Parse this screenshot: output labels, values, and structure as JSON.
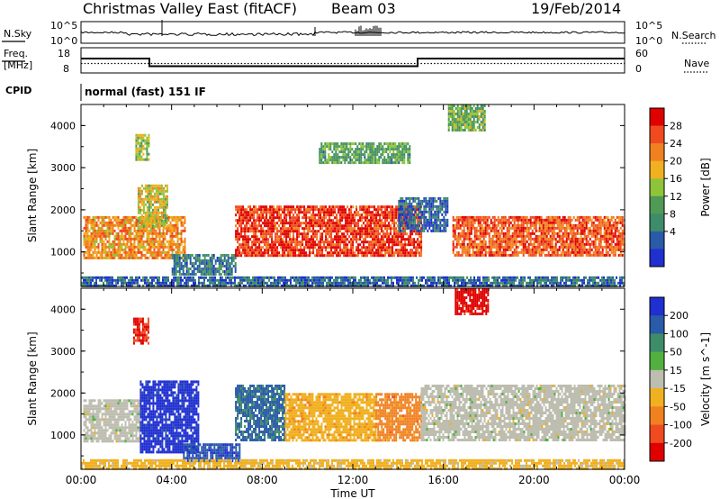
{
  "header": {
    "title": "Christmas Valley East (fitACF)",
    "beam": "Beam 03",
    "date": "19/Feb/2014"
  },
  "aux_panels": {
    "nsky_label": "N.Sky",
    "nsky_ticks": [
      "10^5",
      "10^0"
    ],
    "nsearch_label": "N.Search",
    "nsearch_ticks": [
      "10^5",
      "10^0"
    ],
    "freq_label": "Freq.",
    "freq_unit": "[MHz]",
    "freq_ticks": [
      "18",
      "8"
    ],
    "nave_label": "Nave",
    "nave_ticks": [
      "60",
      "0"
    ],
    "cpid_label": "CPID",
    "cpid_value": "normal (fast) 151 IF"
  },
  "colors": {
    "power_scale": [
      "#1f2fd0",
      "#2a5aa8",
      "#3e8c6a",
      "#4f9a55",
      "#8fc43a",
      "#f0b020",
      "#f08020",
      "#f04a20",
      "#e00000"
    ],
    "velocity_scale": [
      "#1f2fd0",
      "#2a5aa8",
      "#3e8c6a",
      "#52b040",
      "#bdbdb0",
      "#f0b020",
      "#f08020",
      "#f04a20",
      "#e00000"
    ]
  },
  "chart_data": [
    {
      "type": "heatmap",
      "title": "",
      "xlabel": "Time UT",
      "ylabel": "Slant Range [km]",
      "xticks": [
        "00:00",
        "04:00",
        "08:00",
        "12:00",
        "16:00",
        "20:00",
        "00:00"
      ],
      "xlim": [
        0,
        24
      ],
      "yticks": [
        "1000",
        "2000",
        "3000",
        "4000"
      ],
      "ylim": [
        180,
        4500
      ],
      "colorbar": {
        "label": "Power [dB]",
        "ticks": [
          "28",
          "24",
          "20",
          "16",
          "12",
          "8",
          "4"
        ],
        "range": [
          0,
          32
        ]
      },
      "echo_regions": [
        {
          "t0": 0.1,
          "t1": 4.6,
          "r0": 850,
          "r1": 1850,
          "value": 22
        },
        {
          "t0": 2.5,
          "t1": 3.8,
          "r0": 1600,
          "r1": 2600,
          "value": 18
        },
        {
          "t0": 2.4,
          "t1": 3.0,
          "r0": 3200,
          "r1": 3800,
          "value": 16
        },
        {
          "t0": 4.0,
          "t1": 6.8,
          "r0": 450,
          "r1": 950,
          "value": 8
        },
        {
          "t0": 6.8,
          "t1": 15.0,
          "r0": 900,
          "r1": 2100,
          "value": 28
        },
        {
          "t0": 10.5,
          "t1": 14.5,
          "r0": 3100,
          "r1": 3600,
          "value": 12
        },
        {
          "t0": 14.0,
          "t1": 16.2,
          "r0": 1500,
          "r1": 2300,
          "value": 6
        },
        {
          "t0": 16.4,
          "t1": 24.0,
          "r0": 900,
          "r1": 1850,
          "value": 26
        },
        {
          "t0": 0.0,
          "t1": 24.0,
          "r0": 200,
          "r1": 420,
          "value": 6
        },
        {
          "t0": 16.2,
          "t1": 17.8,
          "r0": 3900,
          "r1": 4500,
          "value": 14
        }
      ]
    },
    {
      "type": "heatmap",
      "title": "",
      "xlabel": "Time UT",
      "ylabel": "Slant Range [km]",
      "xticks": [
        "00:00",
        "04:00",
        "08:00",
        "12:00",
        "16:00",
        "20:00",
        "00:00"
      ],
      "xlim": [
        0,
        24
      ],
      "yticks": [
        "1000",
        "2000",
        "3000",
        "4000"
      ],
      "ylim": [
        180,
        4500
      ],
      "colorbar": {
        "label": "Velocity [m s^-1]",
        "ticks": [
          "200",
          "100",
          "50",
          "15",
          "-15",
          "-50",
          "-100",
          "-200"
        ],
        "range": [
          -250,
          250
        ]
      },
      "echo_regions": [
        {
          "t0": 0.1,
          "t1": 2.6,
          "r0": 850,
          "r1": 1850,
          "value": 0
        },
        {
          "t0": 2.6,
          "t1": 5.2,
          "r0": 600,
          "r1": 2300,
          "value": 220
        },
        {
          "t0": 4.5,
          "t1": 7.0,
          "r0": 400,
          "r1": 800,
          "value": 180
        },
        {
          "t0": 6.8,
          "t1": 9.0,
          "r0": 900,
          "r1": 2200,
          "value": 150
        },
        {
          "t0": 9.0,
          "t1": 13.0,
          "r0": 900,
          "r1": 2000,
          "value": -60
        },
        {
          "t0": 13.0,
          "t1": 15.0,
          "r0": 900,
          "r1": 2000,
          "value": -110
        },
        {
          "t0": 15.0,
          "t1": 24.0,
          "r0": 900,
          "r1": 2200,
          "value": 0
        },
        {
          "t0": 2.3,
          "t1": 3.0,
          "r0": 3200,
          "r1": 3800,
          "value": -200
        },
        {
          "t0": 16.5,
          "t1": 18.0,
          "r0": 3900,
          "r1": 4500,
          "value": -220
        },
        {
          "t0": 0.0,
          "t1": 24.0,
          "r0": 200,
          "r1": 420,
          "value": -50
        }
      ]
    }
  ]
}
